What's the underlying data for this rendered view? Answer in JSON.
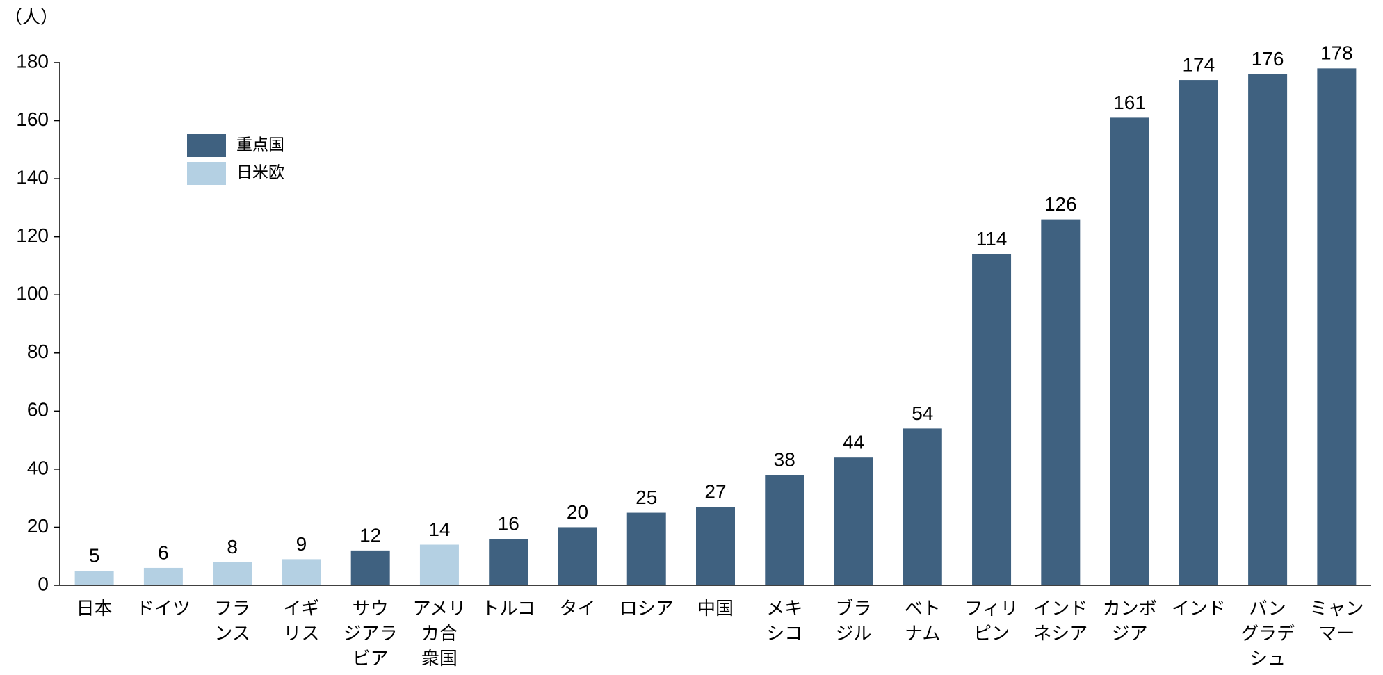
{
  "chart_data": {
    "type": "bar",
    "unit_label": "（人）",
    "categories": [
      "日本",
      "ドイツ",
      "フラ\nンス",
      "イギ\nリス",
      "サウ\nジアラ\nビア",
      "アメリ\nカ合\n衆国",
      "トルコ",
      "タイ",
      "ロシア",
      "中国",
      "メキ\nシコ",
      "ブラ\nジル",
      "ベト\nナム",
      "フィリ\nピン",
      "インド\nネシア",
      "カンボ\nジア",
      "インド",
      "バン\nグラデ\nシュ",
      "ミャン\nマー"
    ],
    "series": [
      {
        "name": "重点国",
        "color": "#3f6180",
        "values": [
          null,
          null,
          null,
          null,
          12,
          null,
          16,
          20,
          25,
          27,
          38,
          44,
          54,
          114,
          126,
          161,
          174,
          176,
          178
        ]
      },
      {
        "name": "日米欧",
        "color": "#b4d0e3",
        "values": [
          5,
          6,
          8,
          9,
          null,
          14,
          null,
          null,
          null,
          null,
          null,
          null,
          null,
          null,
          null,
          null,
          null,
          null,
          null
        ]
      }
    ],
    "ylim": [
      0,
      180
    ],
    "yticks": [
      0,
      20,
      40,
      60,
      80,
      100,
      120,
      140,
      160,
      180
    ],
    "grid": false,
    "legend": "upper left"
  }
}
